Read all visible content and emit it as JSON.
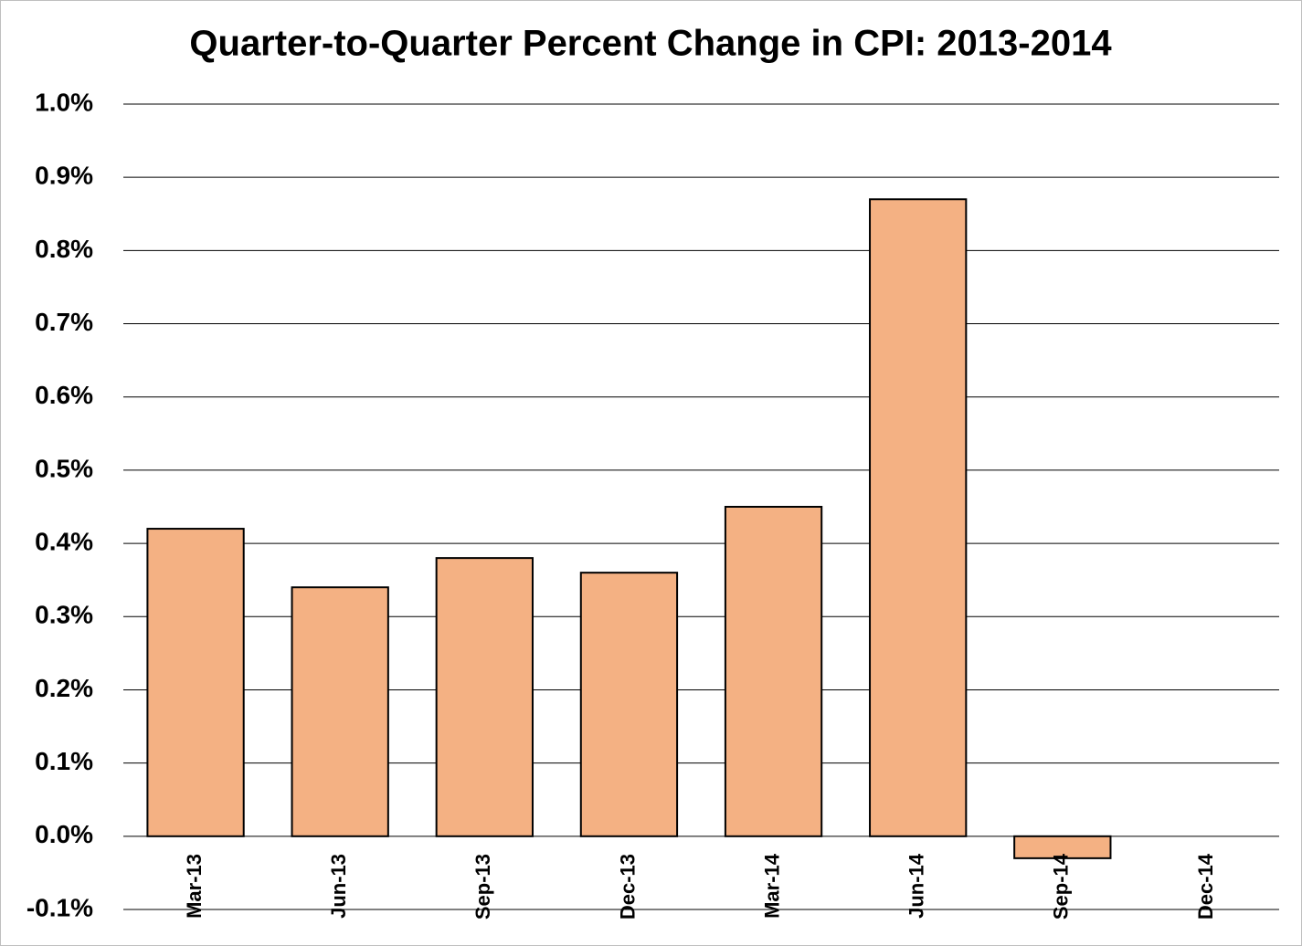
{
  "chart_data": {
    "type": "bar",
    "title": "Quarter-to-Quarter Percent Change in CPI: 2013-2014",
    "categories": [
      "Mar-13",
      "Jun-13",
      "Sep-13",
      "Dec-13",
      "Mar-14",
      "Jun-14",
      "Sep-14",
      "Dec-14"
    ],
    "values": [
      0.42,
      0.34,
      0.38,
      0.36,
      0.45,
      0.87,
      -0.03,
      null
    ],
    "color": "#f4b183",
    "ylim": [
      -0.1,
      1.0
    ],
    "yticks": [
      {
        "value": -0.1,
        "label": "-0.1%"
      },
      {
        "value": 0,
        "label": "0.0%"
      },
      {
        "value": 0.1,
        "label": "0.1%"
      },
      {
        "value": 0.2,
        "label": "0.2%"
      },
      {
        "value": 0.3,
        "label": "0.3%"
      },
      {
        "value": 0.4,
        "label": "0.4%"
      },
      {
        "value": 0.5,
        "label": "0.5%"
      },
      {
        "value": 0.6,
        "label": "0.6%"
      },
      {
        "value": 0.7,
        "label": "0.7%"
      },
      {
        "value": 0.8,
        "label": "0.8%"
      },
      {
        "value": 0.9,
        "label": "0.9%"
      },
      {
        "value": 1.0,
        "label": "1.0%"
      }
    ],
    "grid": true
  }
}
